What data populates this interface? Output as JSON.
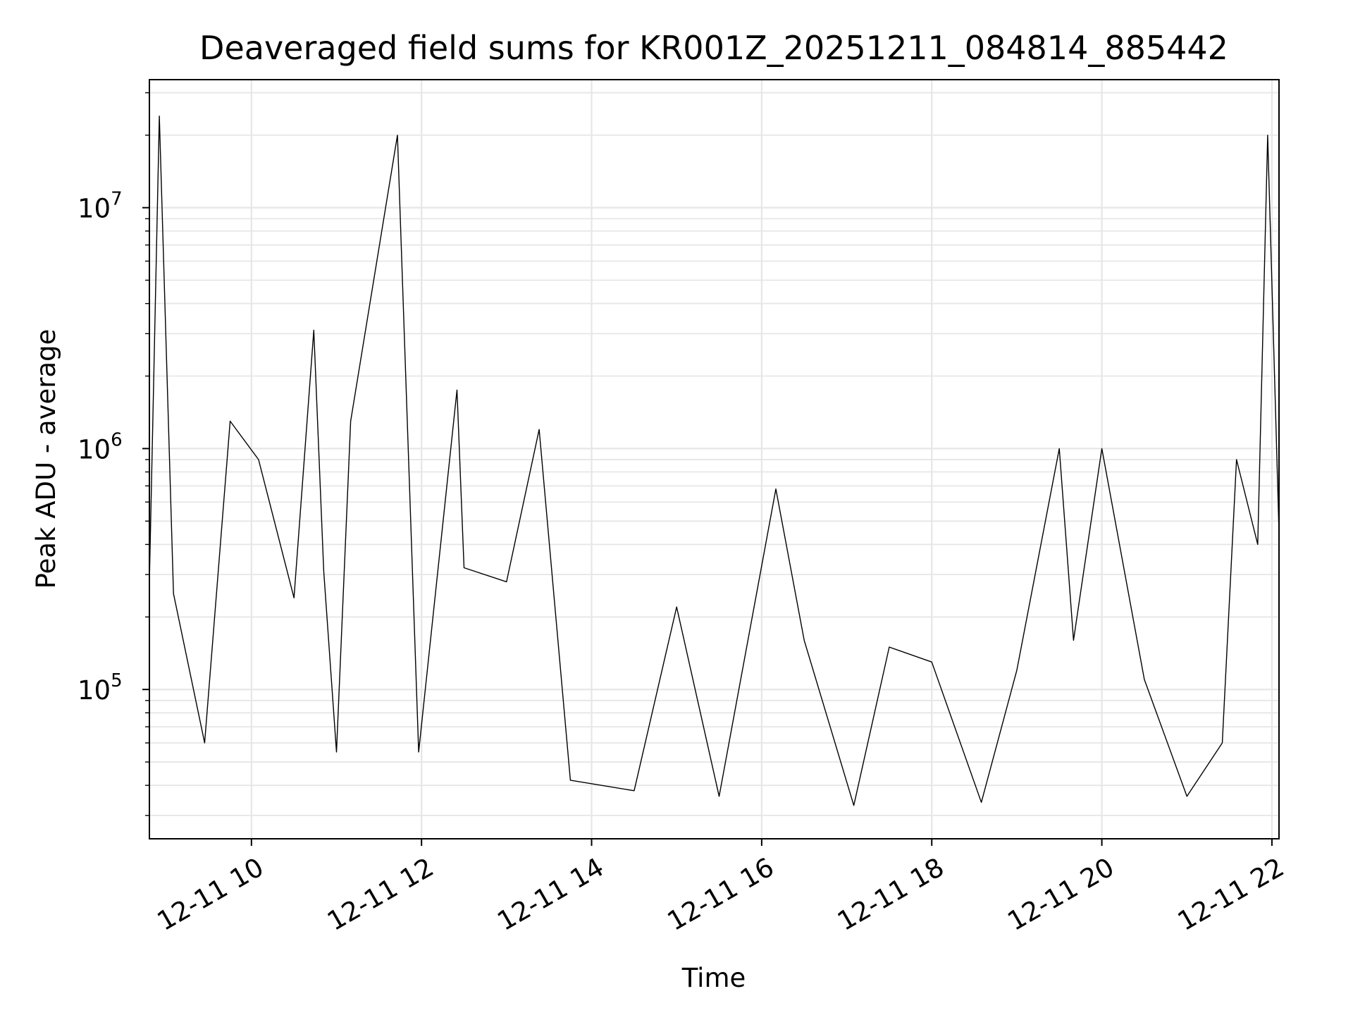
{
  "chart_data": {
    "type": "line",
    "title": "Deaveraged field sums for KR001Z_20251211_084814_885442",
    "xlabel": "Time",
    "ylabel": "Peak ADU - average",
    "yscale": "log",
    "xlim": [
      "2025-12-11 08:48",
      "2025-12-11 22:05"
    ],
    "ylim": [
      24000,
      34000000
    ],
    "grid": true,
    "grid_minor": true,
    "line_color": "#000000",
    "x_ticks": [
      {
        "value": "2025-12-11 10:00",
        "label": "12-11 10"
      },
      {
        "value": "2025-12-11 12:00",
        "label": "12-11 12"
      },
      {
        "value": "2025-12-11 14:00",
        "label": "12-11 14"
      },
      {
        "value": "2025-12-11 16:00",
        "label": "12-11 16"
      },
      {
        "value": "2025-12-11 18:00",
        "label": "12-11 18"
      },
      {
        "value": "2025-12-11 20:00",
        "label": "12-11 20"
      },
      {
        "value": "2025-12-11 22:00",
        "label": "12-11 22"
      }
    ],
    "y_ticks": [
      {
        "value": 100000,
        "base": "10",
        "exp": "5"
      },
      {
        "value": 1000000,
        "base": "10",
        "exp": "6"
      },
      {
        "value": 10000000,
        "base": "10",
        "exp": "7"
      }
    ],
    "series": [
      {
        "points": [
          [
            "2025-12-11 08:48",
            280000
          ],
          [
            "2025-12-11 08:55",
            24000000
          ],
          [
            "2025-12-11 09:05",
            250000
          ],
          [
            "2025-12-11 09:27",
            60000
          ],
          [
            "2025-12-11 09:45",
            1300000
          ],
          [
            "2025-12-11 10:05",
            900000
          ],
          [
            "2025-12-11 10:30",
            240000
          ],
          [
            "2025-12-11 10:44",
            3100000
          ],
          [
            "2025-12-11 10:51",
            310000
          ],
          [
            "2025-12-11 11:00",
            55000
          ],
          [
            "2025-12-11 11:10",
            1300000
          ],
          [
            "2025-12-11 11:43",
            20000000
          ],
          [
            "2025-12-11 11:58",
            55000
          ],
          [
            "2025-12-11 12:25",
            1750000
          ],
          [
            "2025-12-11 12:30",
            320000
          ],
          [
            "2025-12-11 13:00",
            280000
          ],
          [
            "2025-12-11 13:23",
            1200000
          ],
          [
            "2025-12-11 13:45",
            42000
          ],
          [
            "2025-12-11 14:30",
            38000
          ],
          [
            "2025-12-11 15:00",
            220000
          ],
          [
            "2025-12-11 15:30",
            36000
          ],
          [
            "2025-12-11 16:10",
            680000
          ],
          [
            "2025-12-11 16:30",
            160000
          ],
          [
            "2025-12-11 17:05",
            33000
          ],
          [
            "2025-12-11 17:30",
            150000
          ],
          [
            "2025-12-11 18:00",
            130000
          ],
          [
            "2025-12-11 18:35",
            34000
          ],
          [
            "2025-12-11 19:00",
            120000
          ],
          [
            "2025-12-11 19:30",
            1000000
          ],
          [
            "2025-12-11 19:40",
            160000
          ],
          [
            "2025-12-11 20:00",
            1000000
          ],
          [
            "2025-12-11 20:30",
            110000
          ],
          [
            "2025-12-11 21:00",
            36000
          ],
          [
            "2025-12-11 21:25",
            60000
          ],
          [
            "2025-12-11 21:35",
            900000
          ],
          [
            "2025-12-11 21:50",
            400000
          ],
          [
            "2025-12-11 21:57",
            20000000
          ],
          [
            "2025-12-11 22:05",
            450000
          ]
        ]
      }
    ]
  }
}
